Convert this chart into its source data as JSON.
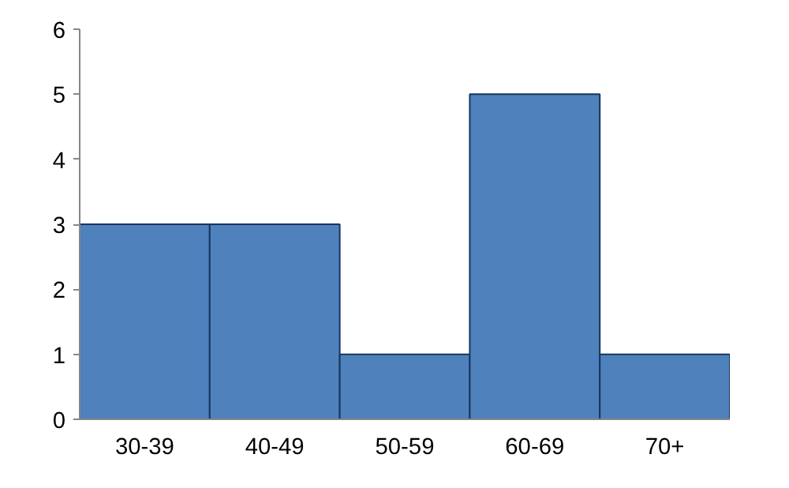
{
  "chart_data": {
    "type": "bar",
    "categories": [
      "30-39",
      "40-49",
      "50-59",
      "60-69",
      "70+"
    ],
    "values": [
      3,
      3,
      1,
      5,
      1
    ],
    "color": "#4f81bd",
    "ylim": [
      0,
      6
    ],
    "yticks": [
      0,
      1,
      2,
      3,
      4,
      5,
      6
    ],
    "grid": false
  }
}
